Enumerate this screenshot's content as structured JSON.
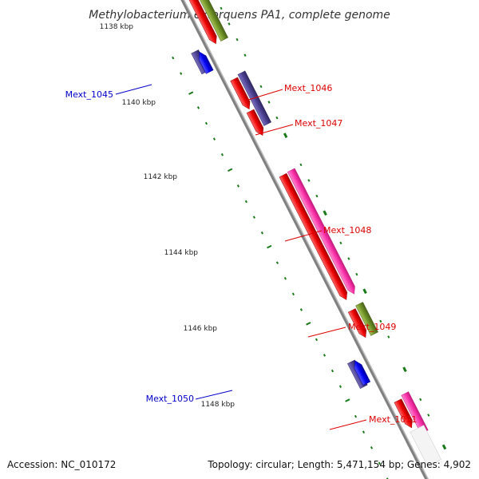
{
  "title": "Methylobacterium extorquens PA1, complete genome",
  "footer": {
    "accession": "Accession: NC_010172",
    "stats": "Topology: circular; Length: 5,471,154 bp; Genes: 4,902"
  },
  "ticks": [
    "1138 kbp",
    "1140 kbp",
    "1142 kbp",
    "1144 kbp",
    "1146 kbp",
    "1148 kbp"
  ],
  "genes": [
    {
      "id": "Mext_1045",
      "color": "#0000cc"
    },
    {
      "id": "Mext_1046",
      "color": "#dd0000"
    },
    {
      "id": "Mext_1047",
      "color": "#dd0000"
    },
    {
      "id": "Mext_1048",
      "color": "#dd0000"
    },
    {
      "id": "Mext_1049",
      "color": "#dd0000"
    },
    {
      "id": "Mext_1050",
      "color": "#0000cc"
    },
    {
      "id": "Mext_1051",
      "color": "#dd0000"
    }
  ],
  "colors": {
    "forward_cds": "#ee0000",
    "forward_cds_pink": "#ff33aa",
    "forward_cds_olive": "#6b8e23",
    "reverse_cds_blue": "#0000ee",
    "reverse_cds_slate": "#4a3f8f",
    "backbone": "#808080",
    "tick_marks": "#1a7a1a"
  }
}
